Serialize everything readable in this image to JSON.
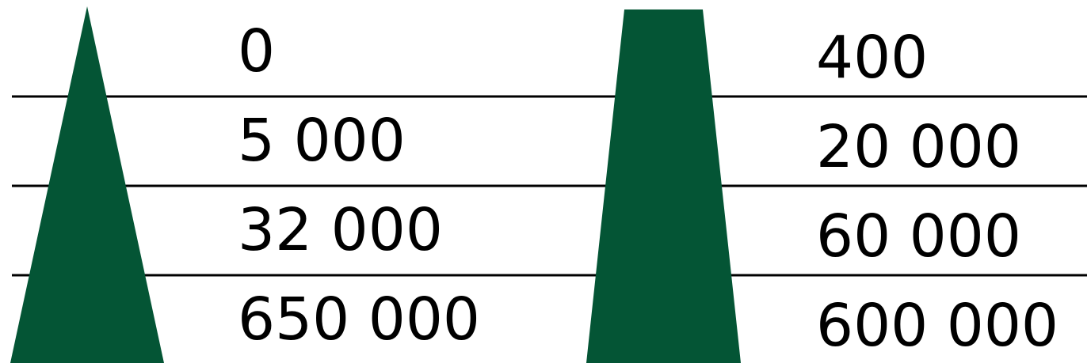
{
  "colors": {
    "shape_fill": "#045535",
    "line": "#000000",
    "text": "#000000",
    "background": "#ffffff"
  },
  "shapes": {
    "left": "triangle",
    "right": "trapezoid"
  },
  "left_values": [
    "0",
    "5 000",
    "32 000",
    "650 000"
  ],
  "right_values": [
    "400",
    "20 000",
    "60 000",
    "600 000"
  ]
}
